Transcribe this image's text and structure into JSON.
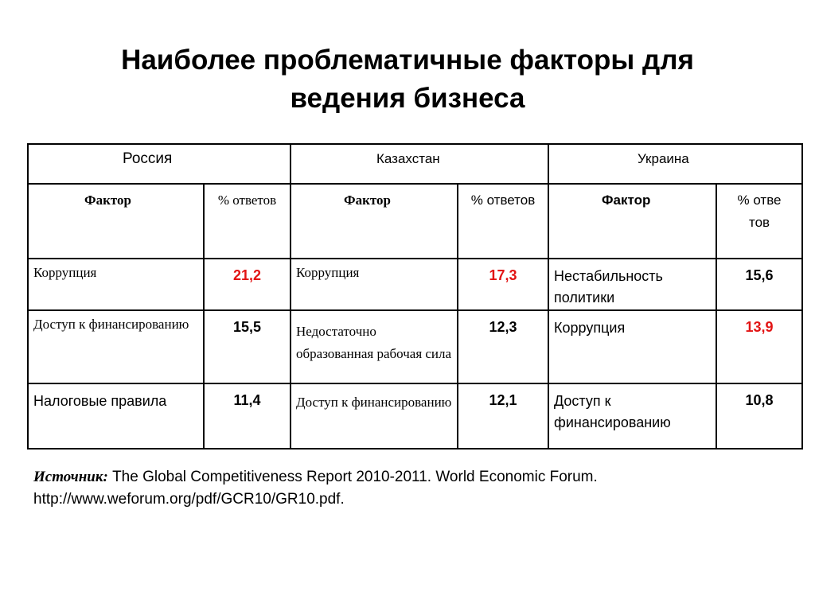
{
  "slide": {
    "title_line1": "Наиболее проблематичные факторы для",
    "title_line2": "ведения бизнеса"
  },
  "table": {
    "countries": [
      "Россия",
      "Казахстан",
      "Украина"
    ],
    "col_headers": {
      "factor": "Фактор",
      "pct_ru": "% ответов",
      "pct_kz": "% ответов",
      "pct_ua": "% ответов"
    },
    "rows": [
      {
        "ru_factor": "Коррупция",
        "ru_value": "21,2",
        "kz_factor": "Коррупция",
        "kz_value": "17,3",
        "ua_factor": "Нестабильность политики",
        "ua_value": "15,6"
      },
      {
        "ru_factor": "Доступ к финансированию",
        "ru_value": "15,5",
        "kz_factor": "Недостаточно образованная рабочая сила",
        "kz_value": "12,3",
        "ua_factor": "Коррупция",
        "ua_value": "13,9"
      },
      {
        "ru_factor": "Налоговые правила",
        "ru_value": "11,4",
        "kz_factor": "Доступ к финансированию",
        "kz_value": "12,1",
        "ua_factor": "Доступ к финансированию",
        "ua_value": "10,8"
      }
    ],
    "highlight_color": "#e21414"
  },
  "source": {
    "label": "Источник:",
    "text": " The Global Competitiveness Report 2010-2011. World Economic Forum.",
    "url": "http://www.weforum.org/pdf/GCR10/GR10.pdf."
  }
}
